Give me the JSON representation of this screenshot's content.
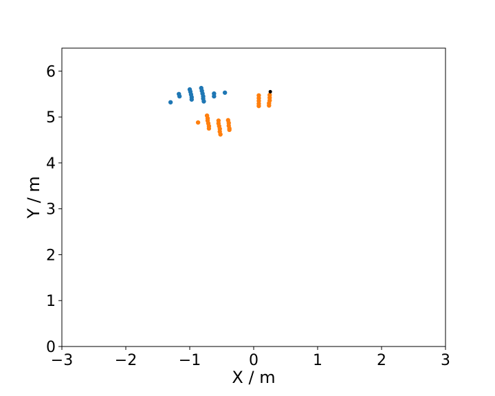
{
  "chart_data": {
    "type": "scatter",
    "title": "",
    "xlabel": "X / m",
    "ylabel": "Y / m",
    "xlim": [
      -3,
      3
    ],
    "ylim": [
      0,
      6.5
    ],
    "xticks": [
      -3,
      -2,
      -1,
      0,
      1,
      2,
      3
    ],
    "yticks": [
      0,
      1,
      2,
      3,
      4,
      5,
      6
    ],
    "xtick_labels": [
      "−3",
      "−2",
      "−1",
      "0",
      "1",
      "2",
      "3"
    ],
    "ytick_labels": [
      "0",
      "1",
      "2",
      "3",
      "4",
      "5",
      "6"
    ],
    "grid": false,
    "legend": "none",
    "series": [
      {
        "color": "#1f77b4",
        "points": [
          [
            -1.3,
            5.32
          ],
          [
            -1.17,
            5.5
          ],
          [
            -1.16,
            5.45
          ],
          [
            -1.0,
            5.6
          ],
          [
            -0.99,
            5.55
          ],
          [
            -0.98,
            5.49
          ],
          [
            -0.97,
            5.43
          ],
          [
            -0.97,
            5.38
          ],
          [
            -0.82,
            5.63
          ],
          [
            -0.81,
            5.57
          ],
          [
            -0.8,
            5.51
          ],
          [
            -0.79,
            5.45
          ],
          [
            -0.79,
            5.4
          ],
          [
            -0.78,
            5.34
          ],
          [
            -0.62,
            5.51
          ],
          [
            -0.62,
            5.45
          ],
          [
            -0.45,
            5.53
          ]
        ]
      },
      {
        "color": "#ff7f0e",
        "points": [
          [
            -0.87,
            4.88
          ],
          [
            -0.73,
            5.03
          ],
          [
            -0.72,
            4.97
          ],
          [
            -0.72,
            4.92
          ],
          [
            -0.71,
            4.86
          ],
          [
            -0.7,
            4.8
          ],
          [
            -0.7,
            4.75
          ],
          [
            -0.55,
            4.92
          ],
          [
            -0.55,
            4.86
          ],
          [
            -0.54,
            4.8
          ],
          [
            -0.53,
            4.74
          ],
          [
            -0.53,
            4.68
          ],
          [
            -0.52,
            4.62
          ],
          [
            -0.4,
            4.93
          ],
          [
            -0.39,
            4.87
          ],
          [
            -0.39,
            4.81
          ],
          [
            -0.38,
            4.75
          ],
          [
            -0.38,
            4.72
          ],
          [
            0.08,
            5.47
          ],
          [
            0.08,
            5.41
          ],
          [
            0.08,
            5.35
          ],
          [
            0.08,
            5.29
          ],
          [
            0.08,
            5.24
          ],
          [
            0.25,
            5.48
          ],
          [
            0.25,
            5.42
          ],
          [
            0.25,
            5.36
          ],
          [
            0.24,
            5.3
          ],
          [
            0.24,
            5.25
          ]
        ]
      },
      {
        "color": "#000000",
        "points": [
          [
            0.26,
            5.55
          ]
        ]
      }
    ]
  }
}
